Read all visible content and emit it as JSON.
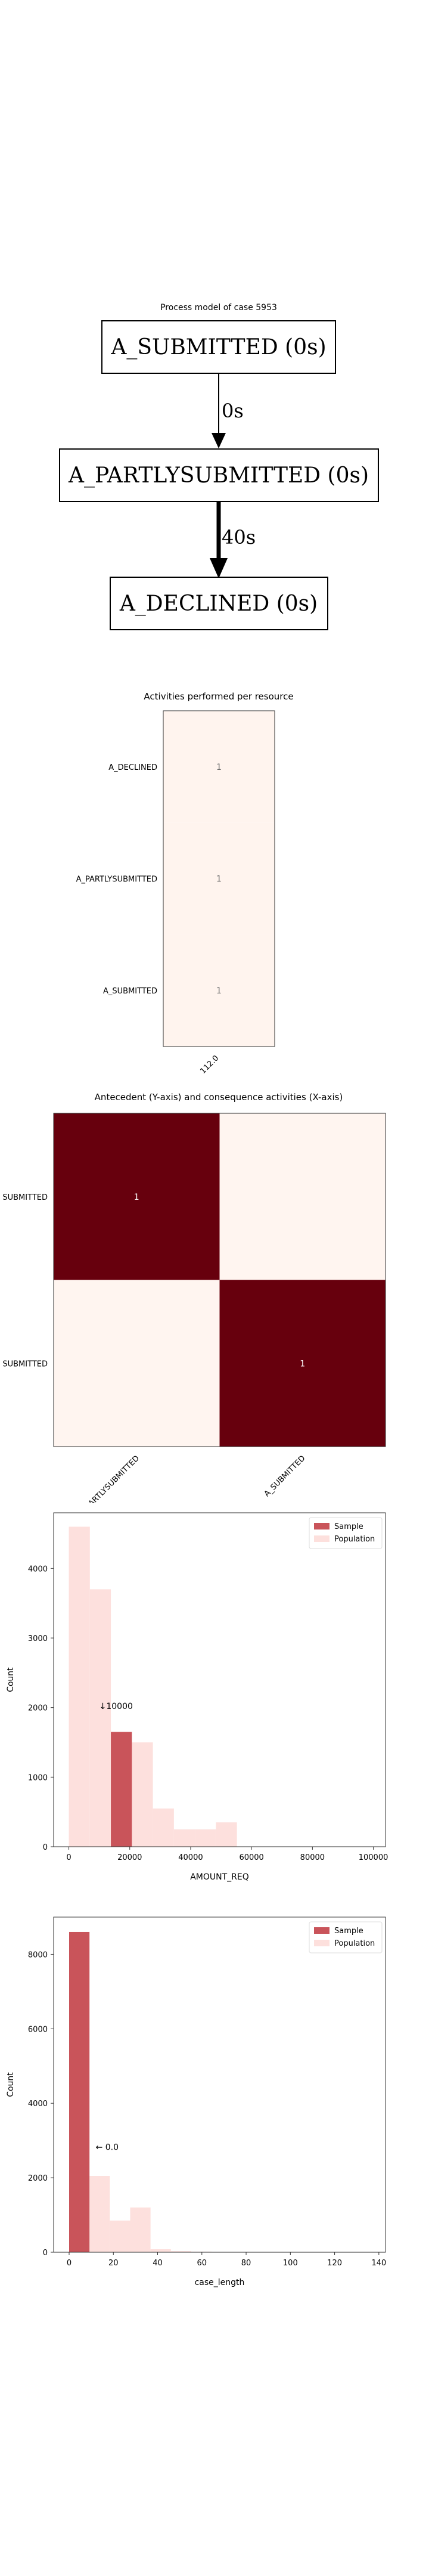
{
  "process_model": {
    "title": "Process model of case 5953",
    "nodes": [
      "A_SUBMITTED (0s)",
      "A_PARTLYSUBMITTED (0s)",
      "A_DECLINED (0s)"
    ],
    "edges": [
      {
        "from": 0,
        "to": 1,
        "label": "0s"
      },
      {
        "from": 1,
        "to": 2,
        "label": "40s"
      }
    ]
  },
  "chart_data": [
    {
      "type": "heatmap",
      "title": "Activities performed per resource",
      "rows": [
        "A_DECLINED",
        "A_PARTLYSUBMITTED",
        "A_SUBMITTED"
      ],
      "columns": [
        "112.0"
      ],
      "values": [
        [
          1
        ],
        [
          1
        ],
        [
          1
        ]
      ],
      "colors": {
        "cell": "#fff4ee",
        "text": "#6b6b6b"
      }
    },
    {
      "type": "heatmap",
      "title": "Antecedent (Y-axis) and consequence activities (X-axis)",
      "rows": [
        "A_PARTLYSUBMITTED",
        "A_SUBMITTED"
      ],
      "row_labels_visible": [
        "SUBMITTED",
        "SUBMITTED"
      ],
      "columns": [
        "A_PARTLYSUBMITTED",
        "A_SUBMITTED"
      ],
      "values": [
        [
          1,
          0
        ],
        [
          0,
          1
        ]
      ],
      "colors": {
        "high": "#67000d",
        "low": "#fff5f0",
        "text": "#ffffff"
      }
    },
    {
      "type": "bar",
      "xlabel": "AMOUNT_REQ",
      "ylabel": "Count",
      "xlim": [
        -5000,
        104000
      ],
      "ylim": [
        0,
        4800
      ],
      "xticks": [
        "0",
        "20000",
        "40000",
        "60000",
        "80000",
        "100000"
      ],
      "xtick_values": [
        0,
        20000,
        40000,
        60000,
        80000,
        100000
      ],
      "yticks": [
        "0",
        "1000",
        "2000",
        "3000",
        "4000"
      ],
      "ytick_values": [
        0,
        1000,
        2000,
        3000,
        4000
      ],
      "bin_width": 6900,
      "series": [
        {
          "name": "Population",
          "color": "#fde0dd",
          "bins": [
            [
              0,
              4600
            ],
            [
              6900,
              3700
            ],
            [
              13800,
              1650
            ],
            [
              20700,
              1500
            ],
            [
              27600,
              550
            ],
            [
              34500,
              250
            ],
            [
              41400,
              250
            ],
            [
              48300,
              350
            ]
          ]
        },
        {
          "name": "Sample",
          "color": "#c9545a",
          "bins": [
            [
              13800,
              1650
            ]
          ]
        }
      ],
      "annotation": {
        "text": "↓10000",
        "x": 10000,
        "y": 1980
      },
      "legend": "top-right"
    },
    {
      "type": "bar",
      "xlabel": "case_length",
      "ylabel": "Count",
      "xlim": [
        -7,
        143
      ],
      "ylim": [
        0,
        9000
      ],
      "xticks": [
        "0",
        "20",
        "40",
        "60",
        "80",
        "100",
        "120",
        "140"
      ],
      "xtick_values": [
        0,
        20,
        40,
        60,
        80,
        100,
        120,
        140
      ],
      "yticks": [
        "0",
        "2000",
        "4000",
        "6000",
        "8000"
      ],
      "ytick_values": [
        0,
        2000,
        4000,
        6000,
        8000
      ],
      "bin_width": 9.2,
      "series": [
        {
          "name": "Population",
          "color": "#fde0dd",
          "bins": [
            [
              0,
              8600
            ],
            [
              9.2,
              2050
            ],
            [
              18.4,
              850
            ],
            [
              27.6,
              1200
            ],
            [
              36.8,
              80
            ],
            [
              46,
              30
            ],
            [
              55.2,
              15
            ]
          ]
        },
        {
          "name": "Sample",
          "color": "#c9545a",
          "bins": [
            [
              0,
              8600
            ]
          ]
        }
      ],
      "annotation": {
        "text": "← 0.0",
        "x": 12,
        "y": 2750
      },
      "legend": "top-right"
    }
  ]
}
